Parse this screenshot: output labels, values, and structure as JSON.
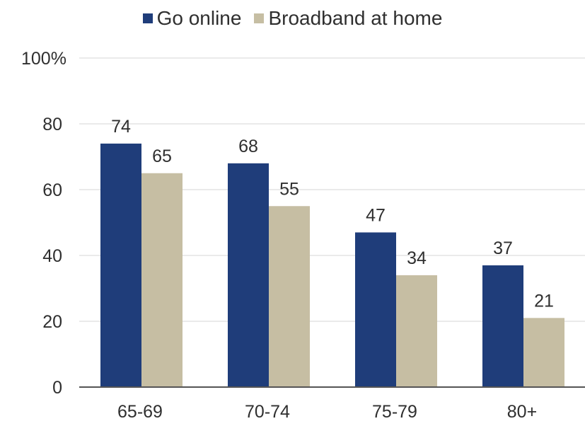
{
  "chart_data": {
    "type": "bar",
    "categories": [
      "65-69",
      "70-74",
      "75-79",
      "80+"
    ],
    "series": [
      {
        "name": "Go online",
        "values": [
          74,
          68,
          47,
          37
        ],
        "color": "#1f3d7a"
      },
      {
        "name": "Broadband at home",
        "values": [
          65,
          55,
          34,
          21
        ],
        "color": "#c6bea3"
      }
    ],
    "title": "",
    "xlabel": "",
    "ylabel": "",
    "ylim": [
      0,
      100
    ],
    "yticks": [
      "0",
      "20",
      "40",
      "60",
      "80",
      "100%"
    ],
    "grid": true,
    "legend_position": "top-center"
  }
}
